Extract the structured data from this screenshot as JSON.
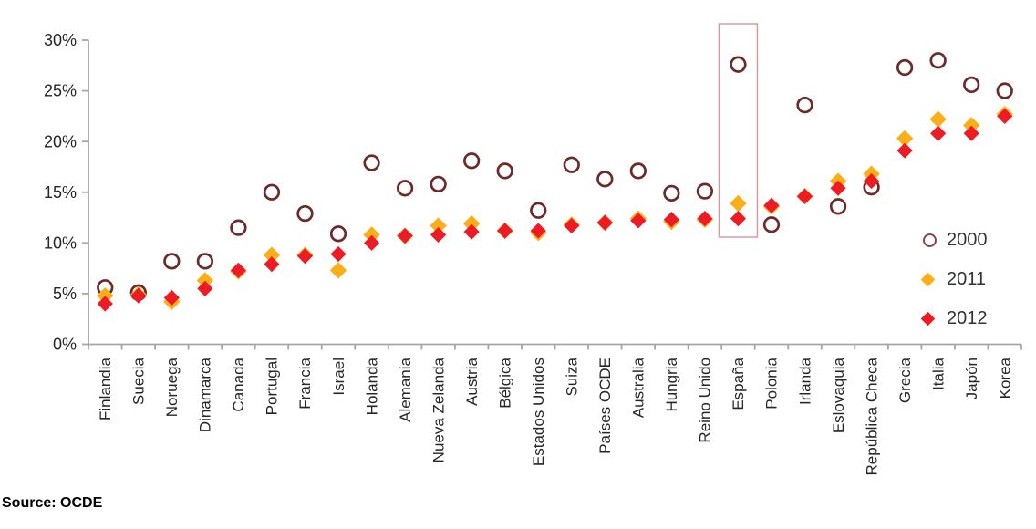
{
  "chart_data": {
    "type": "scatter",
    "title": "",
    "xlabel": "",
    "ylabel": "",
    "ylim": [
      0,
      30
    ],
    "y_ticks": [
      "0%",
      "5%",
      "10%",
      "15%",
      "20%",
      "25%",
      "30%"
    ],
    "grid": false,
    "legend_position": "right",
    "categories": [
      "Finlandia",
      "Suecia",
      "Noruega",
      "Dinamarca",
      "Canada",
      "Portugal",
      "Francia",
      "Israel",
      "Holanda",
      "Alemania",
      "Nueva Zelanda",
      "Austria",
      "Bélgica",
      "Estados Unidos",
      "Suiza",
      "Países OCDE",
      "Australia",
      "Hungria",
      "Reino Unido",
      "España",
      "Polonia",
      "Irlanda",
      "Eslovaquia",
      "República Checa",
      "Grecia",
      "Italia",
      "Japón",
      "Korea"
    ],
    "series": [
      {
        "name": "2000",
        "marker": "open-circle",
        "color": "#6d2a28",
        "values": [
          5.6,
          5.1,
          8.2,
          8.2,
          11.5,
          15.0,
          12.9,
          10.9,
          17.9,
          15.4,
          15.8,
          18.1,
          17.1,
          13.2,
          17.7,
          16.3,
          17.1,
          14.9,
          15.1,
          27.6,
          11.8,
          23.6,
          13.6,
          15.5,
          27.3,
          28.0,
          25.6,
          25.0
        ]
      },
      {
        "name": "2011",
        "marker": "diamond",
        "color": "#fbae17",
        "values": [
          4.8,
          4.9,
          4.2,
          6.3,
          7.2,
          8.8,
          8.8,
          7.3,
          10.8,
          10.7,
          11.7,
          11.9,
          11.2,
          11.0,
          11.8,
          12.0,
          12.4,
          12.1,
          12.3,
          13.9,
          13.6,
          14.6,
          16.1,
          16.8,
          20.3,
          22.2,
          21.6,
          22.7
        ]
      },
      {
        "name": "2012",
        "marker": "diamond",
        "color": "#ed1c24",
        "values": [
          4.0,
          4.8,
          4.6,
          5.5,
          7.3,
          7.9,
          8.7,
          8.9,
          10.0,
          10.7,
          10.8,
          11.1,
          11.2,
          11.2,
          11.7,
          12.0,
          12.2,
          12.3,
          12.4,
          12.4,
          13.7,
          14.6,
          15.4,
          16.1,
          19.1,
          20.8,
          20.8,
          22.5
        ]
      }
    ],
    "highlight": {
      "category": "España",
      "color": "#d99694"
    },
    "axis_color": "#a6a6a6"
  },
  "legend": {
    "items": [
      {
        "label": "2000",
        "marker": "open-circle"
      },
      {
        "label": "2011",
        "marker": "orange-diamond"
      },
      {
        "label": "2012",
        "marker": "red-diamond"
      }
    ]
  },
  "source": {
    "label": "Source: OCDE"
  }
}
